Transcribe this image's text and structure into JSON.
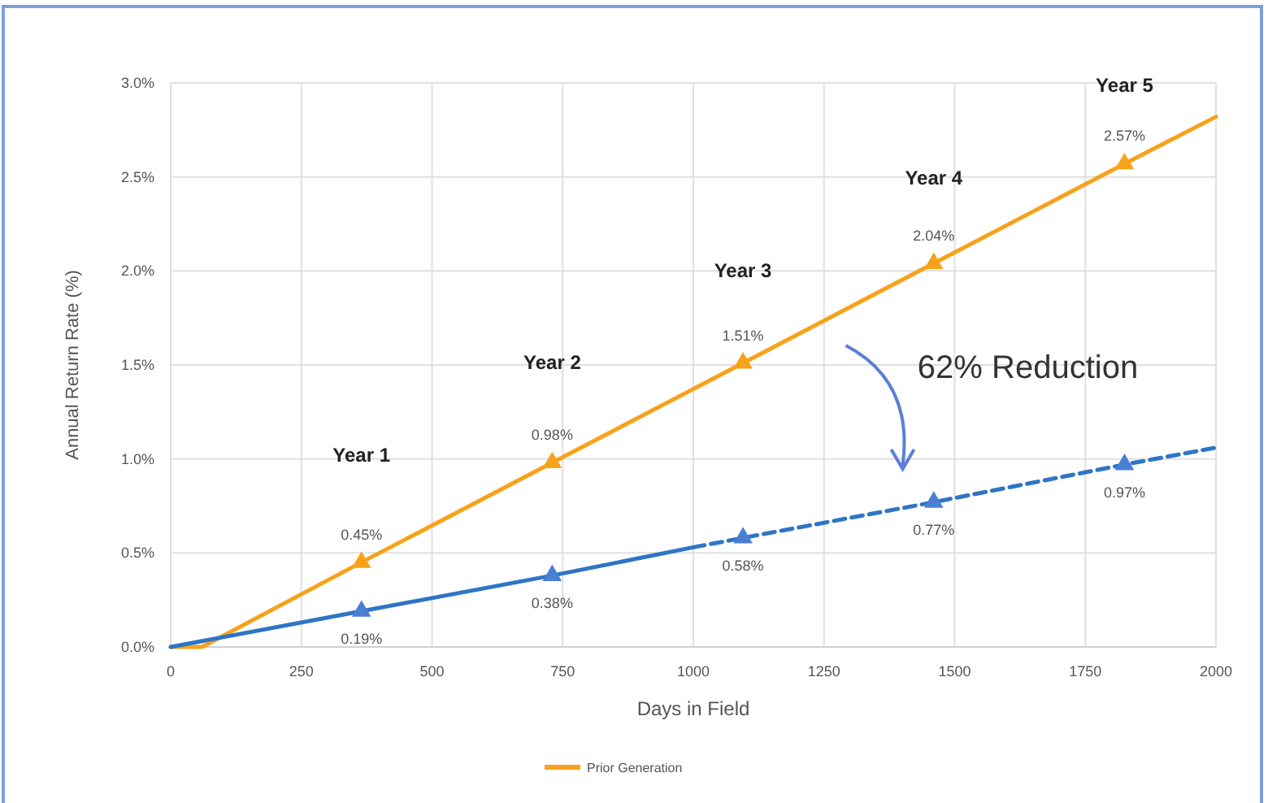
{
  "chart_data": {
    "type": "line",
    "xlabel": "Days in Field",
    "ylabel": "Annual Return Rate (%)",
    "xlim": [
      0,
      2000
    ],
    "xticks": [
      0,
      250,
      500,
      750,
      1000,
      1250,
      1500,
      1750,
      2000
    ],
    "ylim": [
      0,
      3
    ],
    "yticks": [
      {
        "value": 0,
        "label": "0.0%"
      },
      {
        "value": 0.5,
        "label": "0.5%"
      },
      {
        "value": 1,
        "label": "1.0%"
      },
      {
        "value": 1.5,
        "label": "1.5%"
      },
      {
        "value": 2,
        "label": "2.0%"
      },
      {
        "value": 2.5,
        "label": "2.5%"
      },
      {
        "value": 3,
        "label": "3.0%"
      }
    ],
    "grid": true,
    "legend": "bottom",
    "series": [
      {
        "name": "Prior Generation",
        "color": "#f7a21b",
        "marker": "none",
        "line_style": "solid",
        "x": [
          0,
          60,
          365,
          730,
          1095,
          1460,
          1825,
          2000
        ],
        "values": [
          0,
          0,
          0.45,
          0.98,
          1.51,
          2.04,
          2.57,
          2.82
        ]
      },
      {
        "name": null,
        "color": "#2e75c6",
        "marker": "none",
        "line_style": "solid",
        "x": [
          0,
          365,
          730,
          1000
        ],
        "values": [
          0,
          0.19,
          0.38,
          0.53
        ]
      },
      {
        "name": null,
        "color": "#2e75c6",
        "marker": "none",
        "line_style": "dashed",
        "x": [
          1000,
          1095,
          1460,
          1825,
          2000
        ],
        "values": [
          0.53,
          0.58,
          0.77,
          0.97,
          1.06
        ]
      },
      {
        "type": "scatter",
        "color": "#f7a21b",
        "marker": "triangle",
        "x": [
          365,
          730,
          1095,
          1460,
          1825
        ],
        "values": [
          0.45,
          0.98,
          1.51,
          2.04,
          2.57
        ],
        "value_labels": [
          "0.45%",
          "0.98%",
          "1.51%",
          "2.04%",
          "2.57%"
        ]
      },
      {
        "type": "scatter",
        "color": "#4a7fd4",
        "marker": "triangle",
        "x": [
          365,
          730,
          1095,
          1460,
          1825
        ],
        "values": [
          0.19,
          0.38,
          0.58,
          0.77,
          0.97
        ],
        "value_labels": [
          "0.19%",
          "0.38%",
          "0.58%",
          "0.77%",
          "0.97%"
        ]
      }
    ],
    "annotations": [
      "Year 1",
      "Year 2",
      "Year 3",
      "Year 4",
      "Year 5",
      "62% Reduction"
    ]
  }
}
